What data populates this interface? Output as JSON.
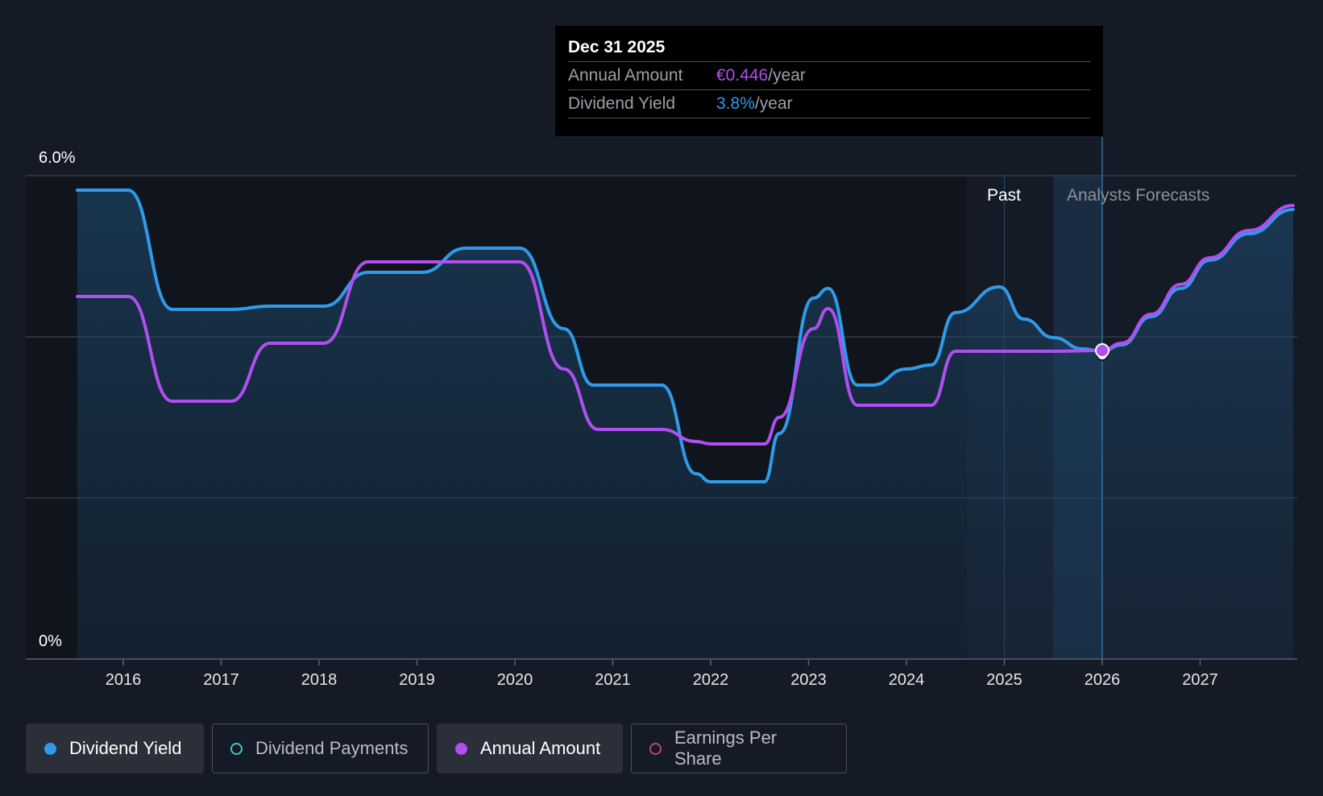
{
  "tooltip": {
    "date": "Dec 31 2025",
    "rows": [
      {
        "label": "Annual Amount",
        "value": "€0.446",
        "unit": "/year",
        "color": "purple"
      },
      {
        "label": "Dividend Yield",
        "value": "3.8%",
        "unit": "/year",
        "color": "blue"
      }
    ]
  },
  "regions": {
    "past_label": "Past",
    "forecast_label": "Analysts Forecasts"
  },
  "legend": [
    {
      "label": "Dividend Yield",
      "color": "#2f9be8",
      "filled": true,
      "active": true
    },
    {
      "label": "Dividend Payments",
      "color": "#3fc5c0",
      "filled": false,
      "active": false
    },
    {
      "label": "Annual Amount",
      "color": "#b04ff0",
      "filled": true,
      "active": true
    },
    {
      "label": "Earnings Per Share",
      "color": "#c2407a",
      "filled": false,
      "active": false
    }
  ],
  "colors": {
    "yield": "#2f9be8",
    "annual": "#b04ff0",
    "background": "#151b26"
  },
  "chart_data": {
    "type": "line",
    "ylabel_top": "6.0%",
    "ylabel_bottom": "0%",
    "ylim": [
      0,
      6.0
    ],
    "xlim": [
      2015.0,
      2028.0
    ],
    "x_ticks": [
      "2016",
      "2017",
      "2018",
      "2019",
      "2020",
      "2021",
      "2022",
      "2023",
      "2024",
      "2025",
      "2026",
      "2027"
    ],
    "gridlines": [
      2.0,
      4.0,
      6.0
    ],
    "legend_position": "bottom",
    "highlight_date": 2026.0,
    "past_region": [
      2025.0,
      2025.5
    ],
    "series": [
      {
        "name": "Dividend Yield",
        "x": [
          2015.53,
          2016.05,
          2016.5,
          2017.1,
          2017.5,
          2018.05,
          2018.5,
          2019.05,
          2019.5,
          2020.05,
          2020.5,
          2020.8,
          2021.5,
          2021.85,
          2022.0,
          2022.55,
          2022.7,
          2023.05,
          2023.2,
          2023.5,
          2023.65,
          2024.0,
          2024.25,
          2024.5,
          2024.95,
          2025.2,
          2025.5,
          2025.8,
          2026.0,
          2026.2,
          2026.5,
          2026.8,
          2027.1,
          2027.5,
          2027.95
        ],
        "y": [
          5.82,
          5.82,
          4.34,
          4.34,
          4.38,
          4.38,
          4.8,
          4.8,
          5.1,
          5.1,
          4.1,
          3.4,
          3.4,
          2.3,
          2.2,
          2.2,
          2.8,
          4.48,
          4.6,
          3.4,
          3.4,
          3.6,
          3.65,
          4.3,
          4.62,
          4.22,
          3.99,
          3.85,
          3.82,
          3.9,
          4.25,
          4.6,
          4.95,
          5.28,
          5.58
        ]
      },
      {
        "name": "Annual Amount",
        "x": [
          2015.53,
          2016.05,
          2016.5,
          2017.1,
          2017.5,
          2018.05,
          2018.5,
          2020.05,
          2020.5,
          2020.85,
          2021.5,
          2021.85,
          2022.0,
          2022.55,
          2022.7,
          2023.05,
          2023.2,
          2023.5,
          2023.65,
          2024.25,
          2024.5,
          2025.0,
          2025.5,
          2026.0,
          2026.2,
          2026.5,
          2026.8,
          2027.1,
          2027.5,
          2027.95
        ],
        "y": [
          4.5,
          4.5,
          3.2,
          3.2,
          3.92,
          3.92,
          4.93,
          4.93,
          3.6,
          2.85,
          2.85,
          2.7,
          2.67,
          2.67,
          3.0,
          4.1,
          4.35,
          3.15,
          3.15,
          3.15,
          3.82,
          3.82,
          3.82,
          3.83,
          3.92,
          4.28,
          4.65,
          4.98,
          5.32,
          5.63
        ]
      }
    ]
  }
}
